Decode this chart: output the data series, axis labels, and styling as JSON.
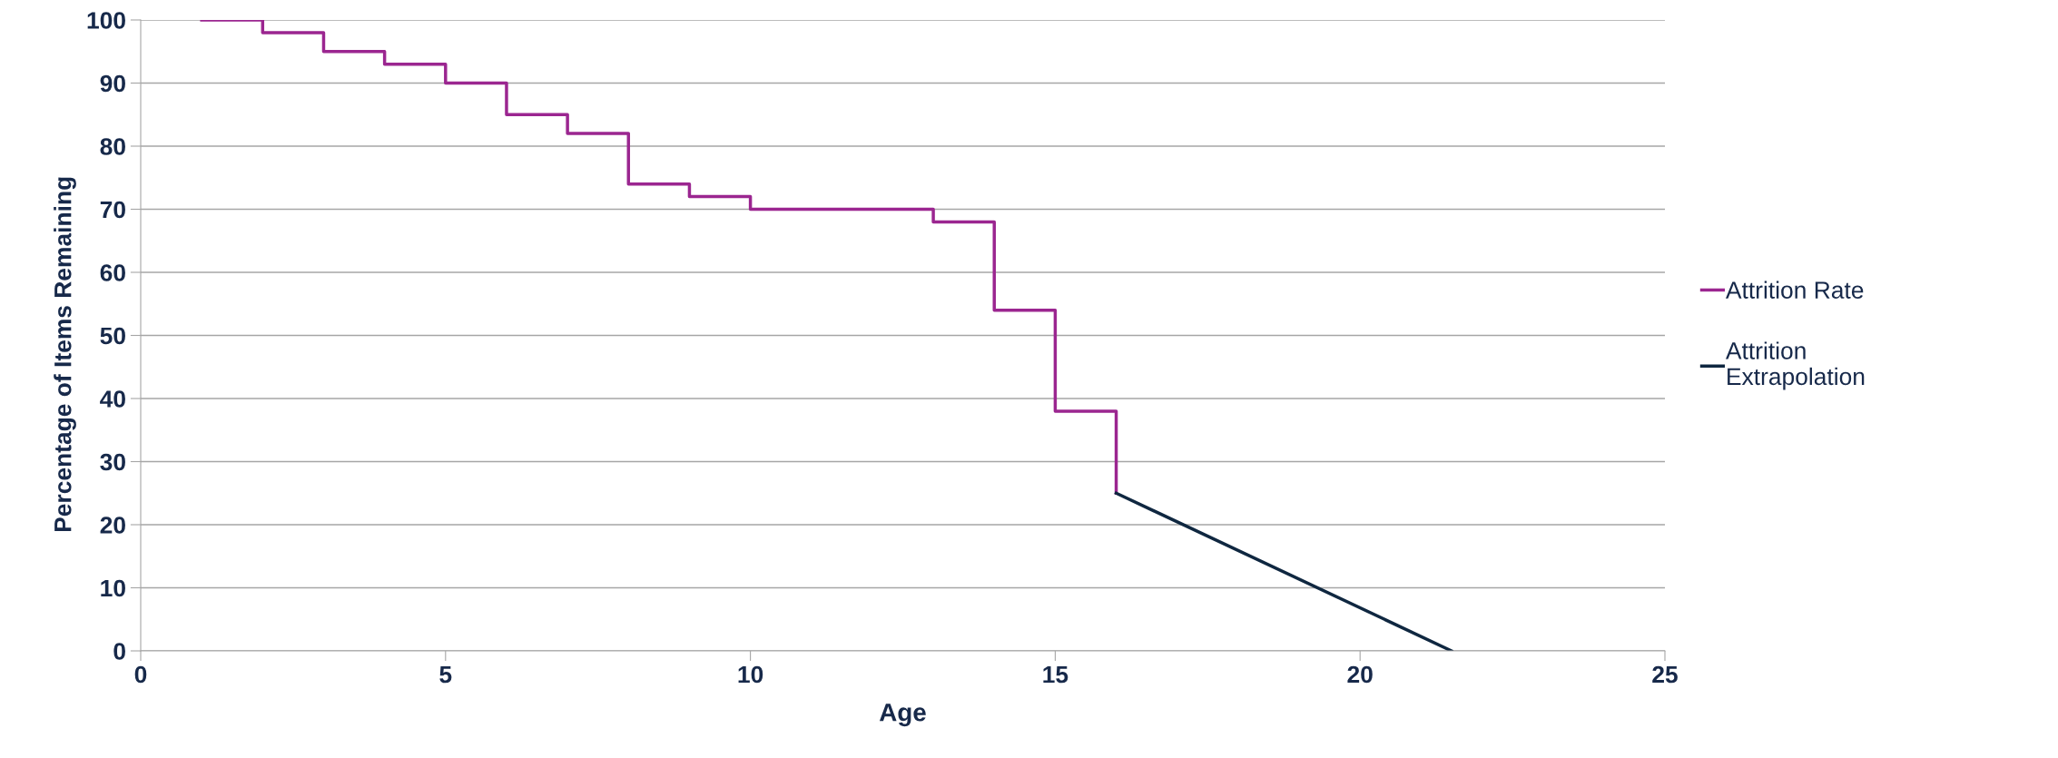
{
  "chart_data": {
    "type": "line",
    "xlabel": "Age",
    "ylabel": "Percentage of Items Remaining",
    "xlim": [
      0,
      25
    ],
    "xticks": [
      0,
      5,
      10,
      15,
      20,
      25
    ],
    "ylim": [
      0,
      100
    ],
    "yticks": [
      0,
      10,
      20,
      30,
      40,
      50,
      60,
      70,
      80,
      90,
      100
    ],
    "grid": "y",
    "legend": "right",
    "marker": "none",
    "line_style": "solid",
    "series": [
      {
        "name": "Attrition Rate",
        "type": "step",
        "color": "#9b2690",
        "x": [
          1,
          2,
          3,
          4,
          5,
          6,
          7,
          8,
          9,
          10,
          11,
          12,
          13,
          14,
          15,
          16
        ],
        "values": [
          100,
          98,
          95,
          93,
          90,
          85,
          82,
          74,
          72,
          70,
          70,
          70,
          68,
          54,
          38,
          25
        ]
      },
      {
        "name": "Attrition\nExtrapolation",
        "color": "#0f2740",
        "x": [
          16,
          21.5
        ],
        "values": [
          25,
          0
        ]
      }
    ]
  }
}
